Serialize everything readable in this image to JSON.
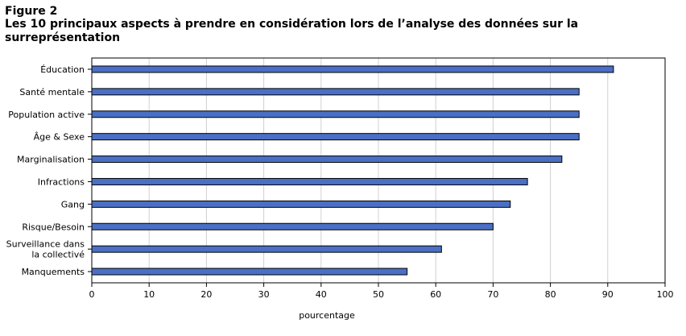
{
  "figure_label": "Figure 2",
  "title": "Les 10 principaux  aspects à prendre en considération  lors de l’analyse des données sur la surreprésentation",
  "colors": {
    "bar_fill": "#4a6fc4",
    "bar_stroke": "#000000",
    "grid": "#d0d0d0"
  },
  "chart_data": {
    "type": "bar",
    "orientation": "horizontal",
    "title": "Les 10 principaux  aspects à prendre en considération  lors de l’analyse des données sur la surreprésentation",
    "xlabel": "pourcentage",
    "ylabel": "",
    "xlim": [
      0,
      100
    ],
    "xticks": [
      0,
      10,
      20,
      30,
      40,
      50,
      60,
      70,
      80,
      90,
      100
    ],
    "grid": true,
    "categories": [
      "Éducation",
      "Santé mentale",
      "Population active",
      "Âge & Sexe",
      "Marginalisation",
      "Infractions",
      "Gang",
      "Risque/Besoin",
      "Surveillance dans la collectivé",
      "Manquements"
    ],
    "category_lines": [
      [
        "Éducation"
      ],
      [
        "Santé mentale"
      ],
      [
        "Population active"
      ],
      [
        "Âge & Sexe"
      ],
      [
        "Marginalisation"
      ],
      [
        "Infractions"
      ],
      [
        "Gang"
      ],
      [
        "Risque/Besoin"
      ],
      [
        "Surveillance dans",
        "la collectivé"
      ],
      [
        "Manquements"
      ]
    ],
    "values": [
      91,
      85,
      85,
      85,
      82,
      76,
      73,
      70,
      61,
      55
    ]
  }
}
